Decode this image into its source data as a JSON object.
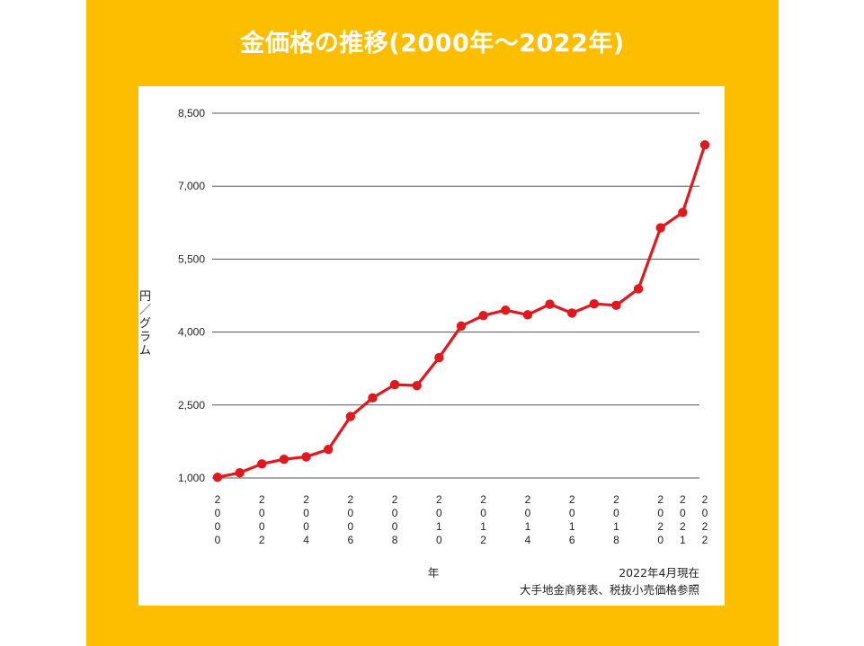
{
  "chart_data": {
    "type": "line",
    "title": "金価格の推移(2000年～2022年)",
    "ylabel": "円/グラム",
    "xlabel": "年",
    "ylim": [
      1000,
      8500
    ],
    "yticks": [
      1000,
      2500,
      4000,
      5500,
      7000,
      8500
    ],
    "ytick_labels": [
      "1,000",
      "2,500",
      "4,000",
      "5,500",
      "7,000",
      "8,500"
    ],
    "x": [
      2000,
      2001,
      2002,
      2003,
      2004,
      2005,
      2006,
      2007,
      2008,
      2009,
      2010,
      2011,
      2012,
      2013,
      2014,
      2015,
      2016,
      2017,
      2018,
      2019,
      2020,
      2021,
      2022
    ],
    "xtick_labels": [
      "2000",
      "2002",
      "2004",
      "2006",
      "2008",
      "2010",
      "2012",
      "2014",
      "2016",
      "2018",
      "2020",
      "2021",
      "2022"
    ],
    "xtick_values": [
      2000,
      2002,
      2004,
      2006,
      2008,
      2010,
      2012,
      2014,
      2016,
      2018,
      2020,
      2021,
      2022
    ],
    "series": [
      {
        "values": [
          1014,
          1108,
          1290,
          1385,
          1435,
          1587,
          2263,
          2647,
          2920,
          2900,
          3475,
          4124,
          4341,
          4450,
          4355,
          4574,
          4390,
          4580,
          4550,
          4890,
          6144,
          6460,
          7847
        ],
        "color": "#E0191E"
      }
    ],
    "grid": "horizontal",
    "notes": [
      "2022年4月現在",
      "大手地金商発表、税抜小売価格参照"
    ]
  }
}
